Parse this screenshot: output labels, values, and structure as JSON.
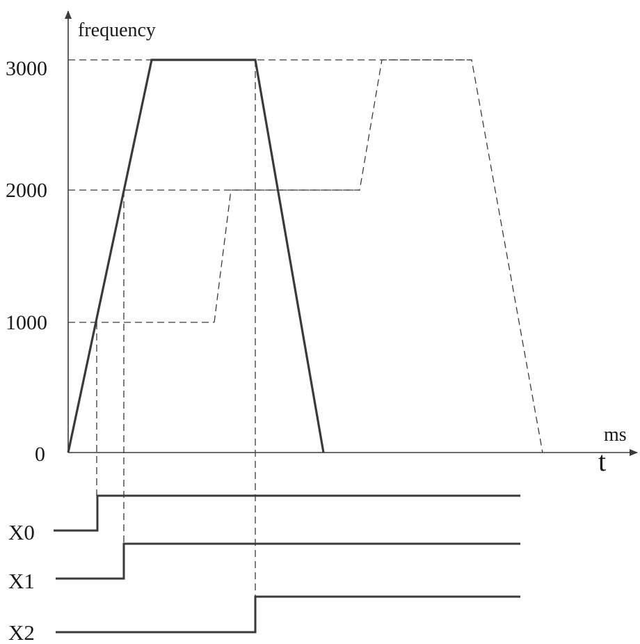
{
  "axes": {
    "y_label": "frequency",
    "x_unit": "ms",
    "x_symbol": "t",
    "y_ticks": [
      "3000",
      "2000",
      "1000",
      "0"
    ]
  },
  "signals": [
    {
      "label": "X0"
    },
    {
      "label": "X1"
    },
    {
      "label": "X2"
    }
  ]
}
